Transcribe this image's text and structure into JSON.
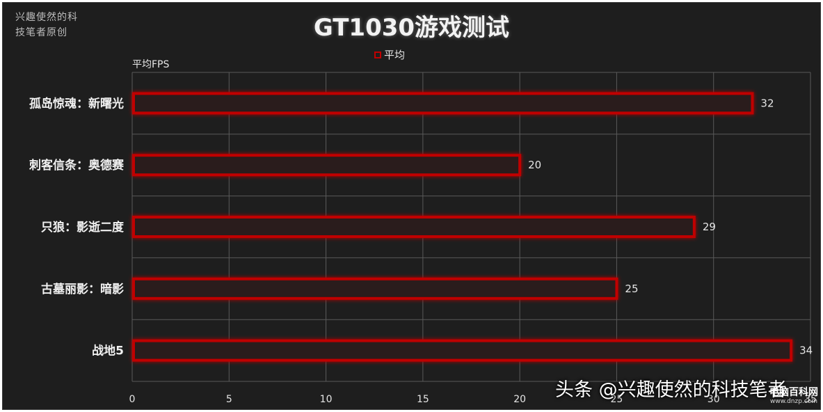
{
  "watermark_top": "兴趣使然的科技笔者原创",
  "legend_label": "平均",
  "axis_unit_label": "平均FPS",
  "watermark_bottom": "头条 @兴趣使然的科技笔者",
  "watermark_site_name": "电脑百科网",
  "watermark_site_url": "www.dnzp.com",
  "colors": {
    "bar_border": "#c00000",
    "bar_fill": "#2a1a1a",
    "grid": "#5a5a5a",
    "background": "#1e1e1e"
  },
  "chart_data": {
    "type": "bar",
    "orientation": "horizontal",
    "title": "GT1030游戏测试",
    "xlabel": "平均FPS",
    "ylabel": "",
    "categories": [
      "孤岛惊魂：新曙光",
      "刺客信条：奥德赛",
      "只狼：影逝二度",
      "古墓丽影：暗影",
      "战地5"
    ],
    "series": [
      {
        "name": "平均",
        "values": [
          32,
          20,
          29,
          25,
          34
        ]
      }
    ],
    "xlim": [
      0,
      35
    ],
    "xticks": [
      0,
      5,
      10,
      15,
      20,
      25,
      30,
      35
    ],
    "grid": true,
    "legend": "top-center"
  }
}
